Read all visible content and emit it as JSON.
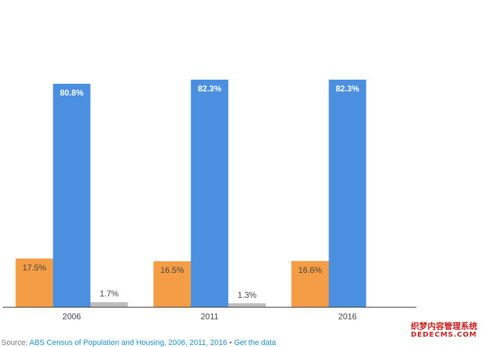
{
  "chart_data": {
    "type": "bar",
    "categories": [
      "2006",
      "2011",
      "2016"
    ],
    "series": [
      {
        "values": [
          17.5,
          16.5,
          16.6
        ],
        "labels": [
          "17.5%",
          "16.5%",
          "16.6%"
        ],
        "color": "#f59d45"
      },
      {
        "values": [
          80.8,
          82.3,
          82.3
        ],
        "labels": [
          "80.8%",
          "82.3%",
          "82.3%"
        ],
        "color": "#4a8fe0"
      },
      {
        "values": [
          1.7,
          1.3,
          null
        ],
        "labels": [
          "1.7%",
          "1.3%",
          ""
        ],
        "color": "#bdbdbd"
      }
    ],
    "ylim": [
      0,
      100
    ],
    "grid": false,
    "baseline_color": "#333333"
  },
  "footer": {
    "prefix": "Source: ",
    "source_link": "ABS Census of Population and Housing, 2006, 2011, 2016",
    "separator": " • ",
    "data_link": "Get the data"
  },
  "watermark": {
    "line1": "织梦内容管理系统",
    "line2": "DEDECMS.COM"
  }
}
